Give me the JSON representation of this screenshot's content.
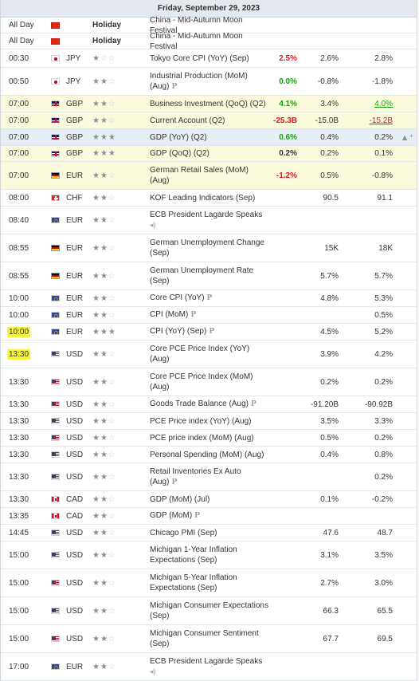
{
  "day_header": "Friday, September 29, 2023",
  "colors": {
    "positive": "#0ea600",
    "negative": "#e5131c",
    "highlight_row": "#fbfadc",
    "selected_row": "#e6eef7",
    "time_marker": "#f7f23a"
  },
  "icons": {
    "star_on": "★",
    "star_off": "☆",
    "preliminary": "P",
    "speech": "speaker-icon",
    "alert": "bell-plus-icon"
  },
  "rows": [
    {
      "time": "All Day",
      "country": "CN",
      "holiday": "Holiday",
      "event": "China - Mid-Autumn Moon Festival",
      "h": 20
    },
    {
      "time": "All Day",
      "country": "CN",
      "holiday": "Holiday",
      "event": "China - Mid-Autumn Moon Festival",
      "h": 20
    },
    {
      "time": "00:30",
      "country": "JP",
      "currency": "JPY",
      "stars": 1,
      "event": "Tokyo Core CPI (YoY) (Sep)",
      "actual": "2.5%",
      "actual_color": "red",
      "forecast": "2.6%",
      "previous": "2.8%",
      "h": 23
    },
    {
      "time": "00:50",
      "country": "JP",
      "currency": "JPY",
      "stars": 2,
      "event": "Industrial Production (MoM) (Aug)",
      "icon": "P",
      "actual": "0.0%",
      "actual_color": "green",
      "forecast": "-0.8%",
      "previous": "-1.8%",
      "h": 35
    },
    {
      "time": "07:00",
      "country": "GB",
      "currency": "GBP",
      "stars": 2,
      "event": "Business Investment (QoQ) (Q2)",
      "actual": "4.1%",
      "actual_color": "green",
      "forecast": "3.4%",
      "previous": "4.0%",
      "previous_color": "green",
      "previous_underline": true,
      "row_style": "yellow",
      "h": 21
    },
    {
      "time": "07:00",
      "country": "GB",
      "currency": "GBP",
      "stars": 2,
      "event": "Current Account (Q2)",
      "actual": "-25.3B",
      "actual_color": "red",
      "forecast": "-15.0B",
      "previous": "-15.2B",
      "previous_color": "red",
      "previous_underline": true,
      "row_style": "yellow",
      "h": 21
    },
    {
      "time": "07:00",
      "country": "GB",
      "currency": "GBP",
      "stars": 3,
      "event": "GDP (YoY) (Q2)",
      "actual": "0.6%",
      "actual_color": "green",
      "forecast": "0.4%",
      "previous": "0.2%",
      "row_style": "blue",
      "alert": true,
      "h": 21
    },
    {
      "time": "07:00",
      "country": "GB",
      "currency": "GBP",
      "stars": 3,
      "event": "GDP (QoQ) (Q2)",
      "actual": "0.2%",
      "forecast": "0.2%",
      "previous": "0.1%",
      "row_style": "yellow",
      "h": 20
    },
    {
      "time": "07:00",
      "country": "DE",
      "currency": "EUR",
      "stars": 2,
      "event": "German Retail Sales (MoM) (Aug)",
      "actual": "-1.2%",
      "actual_color": "red",
      "forecast": "0.5%",
      "previous": "-0.8%",
      "row_style": "yellow",
      "h": 35
    },
    {
      "time": "08:00",
      "country": "CH",
      "currency": "CHF",
      "stars": 2,
      "event": "KOF Leading Indicators (Sep)",
      "actual": "",
      "forecast": "90.5",
      "previous": "91.1",
      "h": 21
    },
    {
      "time": "08:40",
      "country": "EU",
      "currency": "EUR",
      "stars": 2,
      "event": "ECB President Lagarde Speaks",
      "icon": "speech",
      "actual": "",
      "forecast": "",
      "previous": "",
      "h": 35
    },
    {
      "time": "08:55",
      "country": "DE",
      "currency": "EUR",
      "stars": 2,
      "event": "German Unemployment Change (Sep)",
      "actual": "",
      "forecast": "15K",
      "previous": "18K",
      "h": 35
    },
    {
      "time": "08:55",
      "country": "DE",
      "currency": "EUR",
      "stars": 2,
      "event": "German Unemployment Rate (Sep)",
      "actual": "",
      "forecast": "5.7%",
      "previous": "5.7%",
      "h": 35
    },
    {
      "time": "10:00",
      "country": "EU",
      "currency": "EUR",
      "stars": 2,
      "event": "Core CPI (YoY)",
      "icon": "P",
      "actual": "",
      "forecast": "4.8%",
      "previous": "5.3%",
      "h": 21
    },
    {
      "time": "10:00",
      "country": "EU",
      "currency": "EUR",
      "stars": 2,
      "event": "CPI (MoM)",
      "icon": "P",
      "actual": "",
      "forecast": "",
      "previous": "0.5%",
      "h": 21
    },
    {
      "time": "10:00",
      "time_marked": true,
      "country": "EU",
      "currency": "EUR",
      "stars": 3,
      "event": "CPI (YoY) (Sep)",
      "icon": "P",
      "actual": "",
      "forecast": "4.5%",
      "previous": "5.2%",
      "h": 21
    },
    {
      "time": "13:30",
      "time_marked": true,
      "country": "US",
      "currency": "USD",
      "stars": 2,
      "event": "Core PCE Price Index (YoY) (Aug)",
      "actual": "",
      "forecast": "3.9%",
      "previous": "4.2%",
      "h": 35
    },
    {
      "time": "13:30",
      "country": "US",
      "currency": "USD",
      "stars": 2,
      "event": "Core PCE Price Index (MoM) (Aug)",
      "actual": "",
      "forecast": "0.2%",
      "previous": "0.2%",
      "h": 35
    },
    {
      "time": "13:30",
      "country": "US",
      "currency": "USD",
      "stars": 2,
      "event": "Goods Trade Balance (Aug)",
      "icon": "P",
      "actual": "",
      "forecast": "-91.20B",
      "previous": "-90.92B",
      "h": 21
    },
    {
      "time": "13:30",
      "country": "US",
      "currency": "USD",
      "stars": 2,
      "event": "PCE Price index (YoY) (Aug)",
      "actual": "",
      "forecast": "3.5%",
      "previous": "3.3%",
      "h": 21
    },
    {
      "time": "13:30",
      "country": "US",
      "currency": "USD",
      "stars": 2,
      "event": "PCE price index (MoM) (Aug)",
      "actual": "",
      "forecast": "0.5%",
      "previous": "0.2%",
      "h": 21
    },
    {
      "time": "13:30",
      "country": "US",
      "currency": "USD",
      "stars": 2,
      "event": "Personal Spending (MoM) (Aug)",
      "actual": "",
      "forecast": "0.4%",
      "previous": "0.8%",
      "h": 21
    },
    {
      "time": "13:30",
      "country": "US",
      "currency": "USD",
      "stars": 2,
      "event": "Retail Inventories Ex Auto (Aug)",
      "icon": "P",
      "actual": "",
      "forecast": "",
      "previous": "0.2%",
      "h": 35
    },
    {
      "time": "13:30",
      "country": "CA",
      "currency": "CAD",
      "stars": 2,
      "event": "GDP (MoM) (Jul)",
      "actual": "",
      "forecast": "0.1%",
      "previous": "-0.2%",
      "h": 21
    },
    {
      "time": "13:35",
      "country": "CA",
      "currency": "CAD",
      "stars": 2,
      "event": "GDP (MoM)",
      "icon": "P",
      "actual": "",
      "forecast": "",
      "previous": "",
      "h": 21
    },
    {
      "time": "14:45",
      "country": "US",
      "currency": "USD",
      "stars": 2,
      "event": "Chicago PMI (Sep)",
      "actual": "",
      "forecast": "47.6",
      "previous": "48.7",
      "h": 21
    },
    {
      "time": "15:00",
      "country": "US",
      "currency": "USD",
      "stars": 2,
      "event": "Michigan 1-Year Inflation Expectations (Sep)",
      "actual": "",
      "forecast": "3.1%",
      "previous": "3.5%",
      "h": 35
    },
    {
      "time": "15:00",
      "country": "US",
      "currency": "USD",
      "stars": 2,
      "event": "Michigan 5-Year Inflation Expectations (Sep)",
      "actual": "",
      "forecast": "2.7%",
      "previous": "3.0%",
      "h": 35
    },
    {
      "time": "15:00",
      "country": "US",
      "currency": "USD",
      "stars": 2,
      "event": "Michigan Consumer Expectations (Sep)",
      "actual": "",
      "forecast": "66.3",
      "previous": "65.5",
      "h": 35
    },
    {
      "time": "15:00",
      "country": "US",
      "currency": "USD",
      "stars": 2,
      "event": "Michigan Consumer Sentiment (Sep)",
      "actual": "",
      "forecast": "67.7",
      "previous": "69.5",
      "h": 35
    },
    {
      "time": "17:00",
      "country": "EU",
      "currency": "EUR",
      "stars": 2,
      "event": "ECB President Lagarde Speaks",
      "icon": "speech",
      "actual": "",
      "forecast": "",
      "previous": "",
      "h": 35
    }
  ]
}
